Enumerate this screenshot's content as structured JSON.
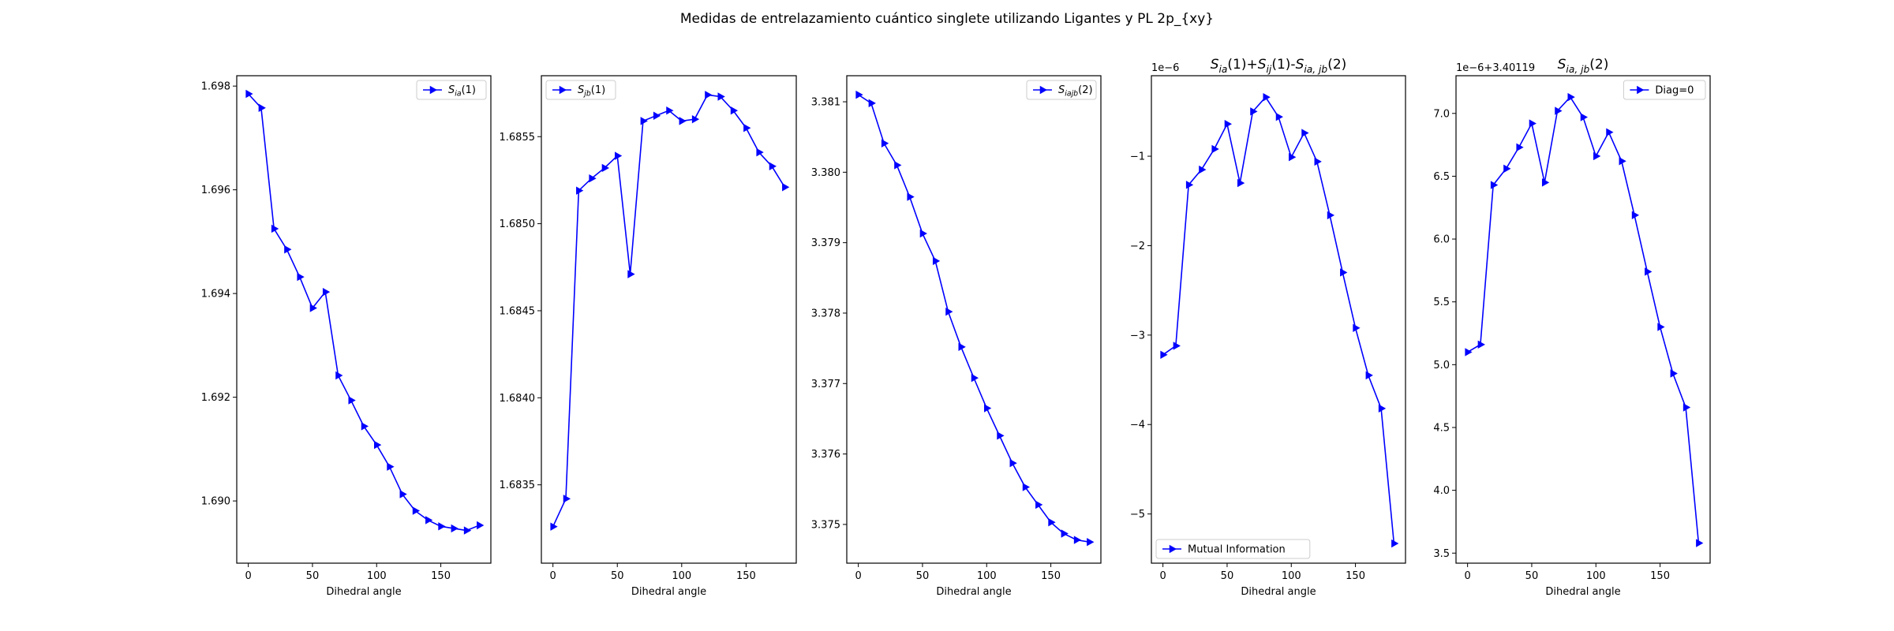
{
  "figure": {
    "suptitle": "Medidas de entrelazamiento cuántico singlete utilizando Ligantes y PL 2p_{xy}"
  },
  "colors": {
    "series": "#0000ff",
    "axis": "#000000",
    "legend_border": "#cccccc"
  },
  "chart_data": [
    {
      "type": "line",
      "title": "",
      "xlabel": "Dihedral angle",
      "ylabel": "",
      "xlim": [
        -9,
        189
      ],
      "ylim": [
        1.6888,
        1.6982
      ],
      "xticks": [
        0,
        50,
        100,
        150
      ],
      "yticks": [
        1.69,
        1.692,
        1.694,
        1.696,
        1.698
      ],
      "ytick_labels": [
        "1.690",
        "1.692",
        "1.694",
        "1.696",
        "1.698"
      ],
      "offset_text": "",
      "legend": {
        "loc": "upper right",
        "label_main": "S",
        "label_sub": "ia",
        "label_rest": "(1)"
      },
      "marker": "triangle-right",
      "grid": false,
      "x": [
        0,
        10,
        20,
        30,
        40,
        50,
        60,
        70,
        80,
        90,
        100,
        110,
        120,
        130,
        140,
        150,
        160,
        170,
        180
      ],
      "y": [
        1.69785,
        1.69758,
        1.69525,
        1.69485,
        1.69432,
        1.69372,
        1.69403,
        1.69242,
        1.69194,
        1.69144,
        1.69108,
        1.69066,
        1.69013,
        1.68981,
        1.68963,
        1.68951,
        1.68947,
        1.68943,
        1.68953
      ]
    },
    {
      "type": "line",
      "title": "",
      "xlabel": "Dihedral angle",
      "ylabel": "",
      "xlim": [
        -9,
        189
      ],
      "ylim": [
        1.68305,
        1.68585
      ],
      "xticks": [
        0,
        50,
        100,
        150
      ],
      "yticks": [
        1.6835,
        1.684,
        1.6845,
        1.685,
        1.6855
      ],
      "ytick_labels": [
        "1.6835",
        "1.6840",
        "1.6845",
        "1.6850",
        "1.6855"
      ],
      "offset_text": "",
      "legend": {
        "loc": "upper left",
        "label_main": "S",
        "label_sub": "jb",
        "label_rest": "(1)"
      },
      "marker": "triangle-right",
      "grid": false,
      "x": [
        0,
        10,
        20,
        30,
        40,
        50,
        60,
        70,
        80,
        90,
        100,
        110,
        120,
        130,
        140,
        150,
        160,
        170,
        180
      ],
      "y": [
        1.68326,
        1.68342,
        1.68519,
        1.68526,
        1.68532,
        1.68539,
        1.68471,
        1.68559,
        1.68562,
        1.68565,
        1.68559,
        1.6856,
        1.68574,
        1.68573,
        1.68565,
        1.68555,
        1.68541,
        1.68533,
        1.68521
      ]
    },
    {
      "type": "line",
      "title": "",
      "xlabel": "Dihedral angle",
      "ylabel": "",
      "xlim": [
        -9,
        189
      ],
      "ylim": [
        3.37445,
        3.38137
      ],
      "xticks": [
        0,
        50,
        100,
        150
      ],
      "yticks": [
        3.375,
        3.376,
        3.377,
        3.378,
        3.379,
        3.38,
        3.381
      ],
      "ytick_labels": [
        "3.375",
        "3.376",
        "3.377",
        "3.378",
        "3.379",
        "3.380",
        "3.381"
      ],
      "offset_text": "",
      "legend": {
        "loc": "upper right",
        "label_main": "S",
        "label_sub": "iajb",
        "label_rest": "(2)"
      },
      "marker": "triangle-right",
      "grid": false,
      "x": [
        0,
        10,
        20,
        30,
        40,
        50,
        60,
        70,
        80,
        90,
        100,
        110,
        120,
        130,
        140,
        150,
        160,
        170,
        180
      ],
      "y": [
        3.3811,
        3.38098,
        3.38041,
        3.3801,
        3.37965,
        3.37913,
        3.37874,
        3.37802,
        3.37752,
        3.37708,
        3.37665,
        3.37626,
        3.37587,
        3.37553,
        3.37528,
        3.37503,
        3.37487,
        3.37478,
        3.37475
      ]
    },
    {
      "type": "line",
      "title": "S_ia(1)+S_ij(1)-S_ia,jb(2)",
      "title_parts": [
        "S",
        "ia",
        "(1)+",
        "S",
        "ij",
        "(1)-",
        "S",
        "ia, jb",
        "(2)"
      ],
      "xlabel": "Dihedral angle",
      "ylabel": "",
      "xlim": [
        -9,
        189
      ],
      "ylim": [
        -5.55,
        -0.1
      ],
      "xticks": [
        0,
        50,
        100,
        150
      ],
      "yticks": [
        -1,
        -2,
        -3,
        -4,
        -5
      ],
      "ytick_labels": [
        "−1",
        "−2",
        "−3",
        "−4",
        "−5"
      ],
      "offset_text": "1e−6",
      "legend": {
        "loc": "lower left",
        "label_main": "Mutual Information",
        "label_sub": "",
        "label_rest": ""
      },
      "marker": "triangle-right",
      "grid": false,
      "x": [
        0,
        10,
        20,
        30,
        40,
        50,
        60,
        70,
        80,
        90,
        100,
        110,
        120,
        130,
        140,
        150,
        160,
        170,
        180
      ],
      "y": [
        -3.22,
        -3.12,
        -1.32,
        -1.15,
        -0.92,
        -0.64,
        -1.3,
        -0.5,
        -0.34,
        -0.56,
        -1.01,
        -0.74,
        -1.06,
        -1.66,
        -2.3,
        -2.92,
        -3.45,
        -3.82,
        -5.33
      ]
    },
    {
      "type": "line",
      "title": "S_ia,jb(2)",
      "title_parts": [
        "S",
        "ia, jb",
        "(2)"
      ],
      "xlabel": "Dihedral angle",
      "ylabel": "",
      "xlim": [
        -9,
        189
      ],
      "ylim": [
        3.42,
        7.3
      ],
      "xticks": [
        0,
        50,
        100,
        150
      ],
      "yticks": [
        3.5,
        4.0,
        4.5,
        5.0,
        5.5,
        6.0,
        6.5,
        7.0
      ],
      "ytick_labels": [
        "3.5",
        "4.0",
        "4.5",
        "5.0",
        "5.5",
        "6.0",
        "6.5",
        "7.0"
      ],
      "offset_text": "1e−6+3.40119",
      "legend": {
        "loc": "upper right",
        "label_main": "Diag=0",
        "label_sub": "",
        "label_rest": ""
      },
      "marker": "triangle-right",
      "grid": false,
      "x": [
        0,
        10,
        20,
        30,
        40,
        50,
        60,
        70,
        80,
        90,
        100,
        110,
        120,
        130,
        140,
        150,
        160,
        170,
        180
      ],
      "y": [
        5.1,
        5.16,
        6.43,
        6.56,
        6.73,
        6.92,
        6.45,
        7.02,
        7.13,
        6.97,
        6.66,
        6.85,
        6.62,
        6.19,
        5.74,
        5.3,
        4.93,
        4.66,
        3.58
      ]
    }
  ]
}
